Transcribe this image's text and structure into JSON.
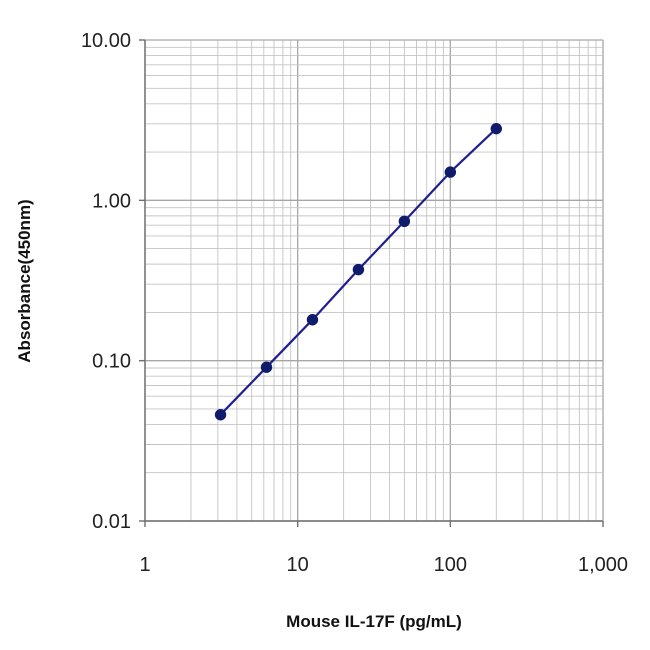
{
  "chart_data": {
    "type": "line",
    "title": "",
    "xlabel": "Mouse IL-17F (pg/mL)",
    "ylabel": "Absorbance(450nm)",
    "x_scale": "log",
    "y_scale": "log",
    "xlim": [
      1,
      1000
    ],
    "ylim": [
      0.01,
      10
    ],
    "x_ticks": [
      1,
      10,
      100,
      1000
    ],
    "x_tick_labels": [
      "1",
      "10",
      "100",
      "1,000"
    ],
    "y_ticks": [
      0.01,
      0.1,
      1,
      10
    ],
    "y_tick_labels": [
      "0.01",
      "0.10",
      "1.00",
      "10.00"
    ],
    "grid": true,
    "legend": "none",
    "series": [
      {
        "x": [
          3.125,
          6.25,
          12.5,
          25,
          50,
          100,
          200
        ],
        "y": [
          0.046,
          0.091,
          0.18,
          0.37,
          0.74,
          1.5,
          2.8
        ],
        "color": "#1f1f8f",
        "marker_color": "#0f1c6b",
        "marker": "circle"
      }
    ]
  }
}
